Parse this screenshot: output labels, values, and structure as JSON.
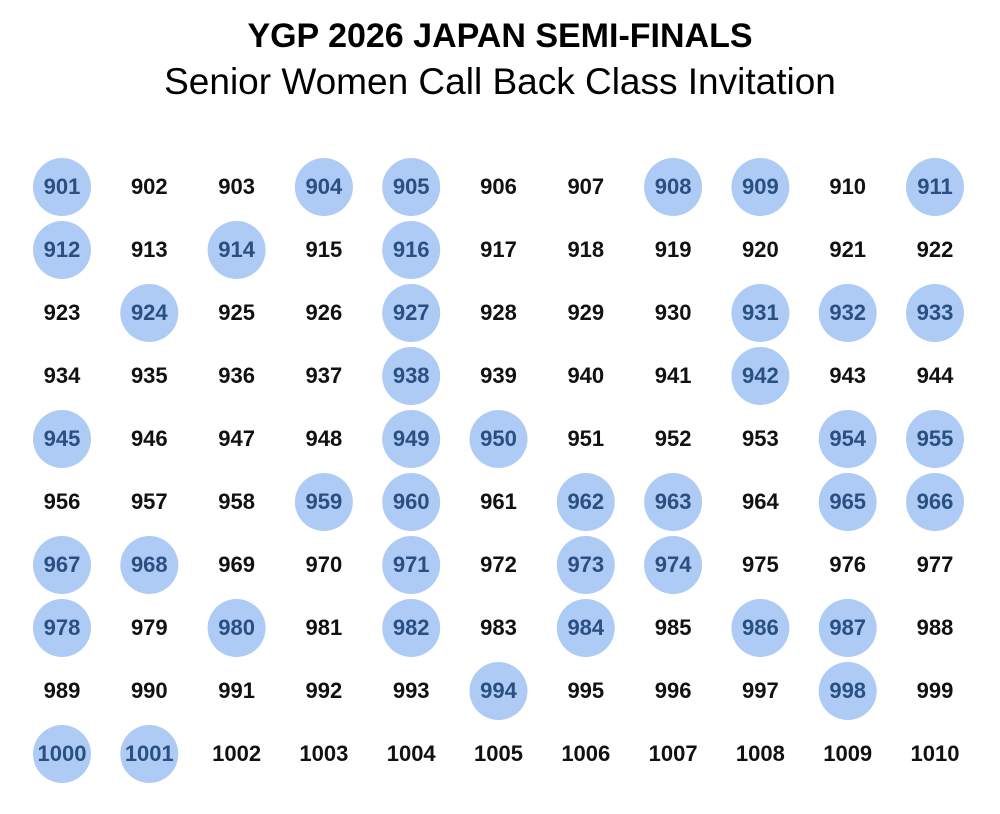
{
  "header": {
    "title": "YGP 2026 JAPAN SEMI-FINALS",
    "subtitle": "Senior Women Call Back Class Invitation"
  },
  "grid": {
    "rows": [
      [
        {
          "number": "901",
          "invited": true
        },
        {
          "number": "902",
          "invited": false
        },
        {
          "number": "903",
          "invited": false
        },
        {
          "number": "904",
          "invited": true
        },
        {
          "number": "905",
          "invited": true
        },
        {
          "number": "906",
          "invited": false
        },
        {
          "number": "907",
          "invited": false
        },
        {
          "number": "908",
          "invited": true
        },
        {
          "number": "909",
          "invited": true
        },
        {
          "number": "910",
          "invited": false
        },
        {
          "number": "911",
          "invited": true
        }
      ],
      [
        {
          "number": "912",
          "invited": true
        },
        {
          "number": "913",
          "invited": false
        },
        {
          "number": "914",
          "invited": true
        },
        {
          "number": "915",
          "invited": false
        },
        {
          "number": "916",
          "invited": true
        },
        {
          "number": "917",
          "invited": false
        },
        {
          "number": "918",
          "invited": false
        },
        {
          "number": "919",
          "invited": false
        },
        {
          "number": "920",
          "invited": false
        },
        {
          "number": "921",
          "invited": false
        },
        {
          "number": "922",
          "invited": false
        }
      ],
      [
        {
          "number": "923",
          "invited": false
        },
        {
          "number": "924",
          "invited": true
        },
        {
          "number": "925",
          "invited": false
        },
        {
          "number": "926",
          "invited": false
        },
        {
          "number": "927",
          "invited": true
        },
        {
          "number": "928",
          "invited": false
        },
        {
          "number": "929",
          "invited": false
        },
        {
          "number": "930",
          "invited": false
        },
        {
          "number": "931",
          "invited": true
        },
        {
          "number": "932",
          "invited": true
        },
        {
          "number": "933",
          "invited": true
        }
      ],
      [
        {
          "number": "934",
          "invited": false
        },
        {
          "number": "935",
          "invited": false
        },
        {
          "number": "936",
          "invited": false
        },
        {
          "number": "937",
          "invited": false
        },
        {
          "number": "938",
          "invited": true
        },
        {
          "number": "939",
          "invited": false
        },
        {
          "number": "940",
          "invited": false
        },
        {
          "number": "941",
          "invited": false
        },
        {
          "number": "942",
          "invited": true
        },
        {
          "number": "943",
          "invited": false
        },
        {
          "number": "944",
          "invited": false
        }
      ],
      [
        {
          "number": "945",
          "invited": true
        },
        {
          "number": "946",
          "invited": false
        },
        {
          "number": "947",
          "invited": false
        },
        {
          "number": "948",
          "invited": false
        },
        {
          "number": "949",
          "invited": true
        },
        {
          "number": "950",
          "invited": true
        },
        {
          "number": "951",
          "invited": false
        },
        {
          "number": "952",
          "invited": false
        },
        {
          "number": "953",
          "invited": false
        },
        {
          "number": "954",
          "invited": true
        },
        {
          "number": "955",
          "invited": true
        }
      ],
      [
        {
          "number": "956",
          "invited": false
        },
        {
          "number": "957",
          "invited": false
        },
        {
          "number": "958",
          "invited": false
        },
        {
          "number": "959",
          "invited": true
        },
        {
          "number": "960",
          "invited": true
        },
        {
          "number": "961",
          "invited": false
        },
        {
          "number": "962",
          "invited": true
        },
        {
          "number": "963",
          "invited": true
        },
        {
          "number": "964",
          "invited": false
        },
        {
          "number": "965",
          "invited": true
        },
        {
          "number": "966",
          "invited": true
        }
      ],
      [
        {
          "number": "967",
          "invited": true
        },
        {
          "number": "968",
          "invited": true
        },
        {
          "number": "969",
          "invited": false
        },
        {
          "number": "970",
          "invited": false
        },
        {
          "number": "971",
          "invited": true
        },
        {
          "number": "972",
          "invited": false
        },
        {
          "number": "973",
          "invited": true
        },
        {
          "number": "974",
          "invited": true
        },
        {
          "number": "975",
          "invited": false
        },
        {
          "number": "976",
          "invited": false
        },
        {
          "number": "977",
          "invited": false
        }
      ],
      [
        {
          "number": "978",
          "invited": true
        },
        {
          "number": "979",
          "invited": false
        },
        {
          "number": "980",
          "invited": true
        },
        {
          "number": "981",
          "invited": false
        },
        {
          "number": "982",
          "invited": true
        },
        {
          "number": "983",
          "invited": false
        },
        {
          "number": "984",
          "invited": true
        },
        {
          "number": "985",
          "invited": false
        },
        {
          "number": "986",
          "invited": true
        },
        {
          "number": "987",
          "invited": true
        },
        {
          "number": "988",
          "invited": false
        }
      ],
      [
        {
          "number": "989",
          "invited": false
        },
        {
          "number": "990",
          "invited": false
        },
        {
          "number": "991",
          "invited": false
        },
        {
          "number": "992",
          "invited": false
        },
        {
          "number": "993",
          "invited": false
        },
        {
          "number": "994",
          "invited": true
        },
        {
          "number": "995",
          "invited": false
        },
        {
          "number": "996",
          "invited": false
        },
        {
          "number": "997",
          "invited": false
        },
        {
          "number": "998",
          "invited": true
        },
        {
          "number": "999",
          "invited": false
        }
      ],
      [
        {
          "number": "1000",
          "invited": true
        },
        {
          "number": "1001",
          "invited": true
        },
        {
          "number": "1002",
          "invited": false
        },
        {
          "number": "1003",
          "invited": false
        },
        {
          "number": "1004",
          "invited": false
        },
        {
          "number": "1005",
          "invited": false
        },
        {
          "number": "1006",
          "invited": false
        },
        {
          "number": "1007",
          "invited": false
        },
        {
          "number": "1008",
          "invited": false
        },
        {
          "number": "1009",
          "invited": false
        },
        {
          "number": "1010",
          "invited": false
        }
      ]
    ]
  }
}
